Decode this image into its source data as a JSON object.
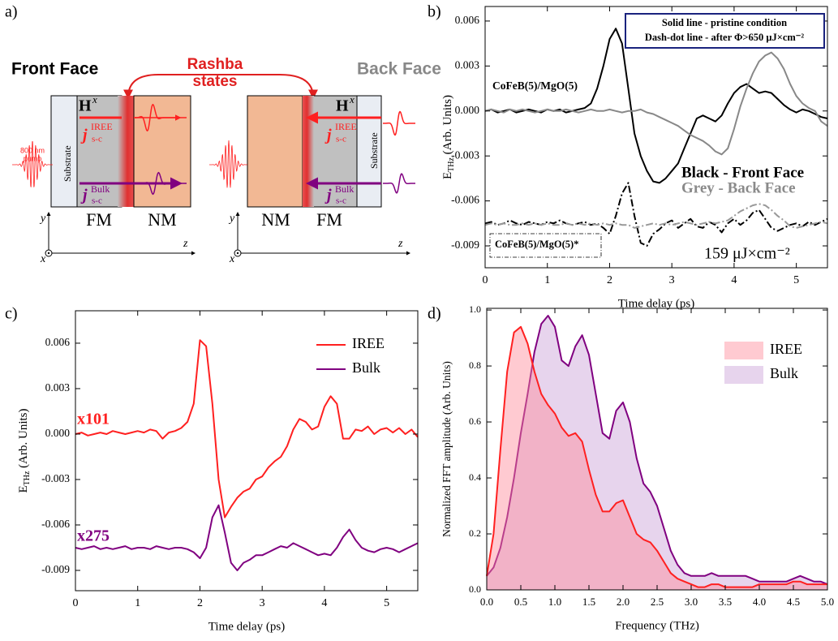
{
  "panel_labels": [
    "a)",
    "b)",
    "c)",
    "d)"
  ],
  "diagram": {
    "rashba": [
      "Rashba",
      "states"
    ],
    "front": {
      "title": "Front Face",
      "pump": [
        "800 nm",
        "pump"
      ],
      "field": "H",
      "field_sup": "x",
      "current": "j",
      "iree_sup": "IREE",
      "iree_sub": "s-c",
      "bulk_sup": "Bulk",
      "bulk_sub": "s-c",
      "substrate": "Substrate",
      "layers": [
        "FM",
        "NM"
      ],
      "axes": [
        "y",
        "x",
        "z"
      ]
    },
    "back": {
      "title": "Back Face",
      "field": "H",
      "field_sup": "x",
      "current": "j",
      "iree_sup": "IREE",
      "iree_sub": "s-c",
      "bulk_sup": "Bulk",
      "bulk_sub": "s-c",
      "substrate": "Substrate",
      "layers": [
        "NM",
        "FM"
      ],
      "axes": [
        "y",
        "x",
        "z"
      ]
    }
  },
  "chart_data": [
    {
      "type": "line",
      "x": [
        0,
        0.1,
        0.2,
        0.3,
        0.4,
        0.5,
        0.6,
        0.7,
        0.8,
        0.9,
        1,
        1.1,
        1.2,
        1.3,
        1.4,
        1.5,
        1.6,
        1.7,
        1.8,
        1.9,
        2,
        2.1,
        2.2,
        2.3,
        2.4,
        2.5,
        2.6,
        2.7,
        2.8,
        2.9,
        3,
        3.1,
        3.2,
        3.3,
        3.4,
        3.5,
        3.6,
        3.7,
        3.8,
        3.9,
        4,
        4.1,
        4.2,
        4.3,
        4.4,
        4.5,
        4.6,
        4.7,
        4.8,
        4.9,
        5,
        5.1,
        5.2,
        5.3,
        5.4,
        5.5
      ],
      "series": [
        {
          "color": "#000000",
          "line_style": "solid",
          "values": [
            0.0,
            0.0001,
            -0.0001,
            0.0,
            0.0001,
            -0.0001,
            0.0,
            0.0001,
            0.0,
            -0.0001,
            0.0001,
            0.0,
            0.0001,
            -0.0001,
            0.0,
            0.0001,
            0.0002,
            0.0005,
            0.0015,
            0.003,
            0.0048,
            0.0055,
            0.0045,
            0.0015,
            -0.0015,
            -0.003,
            -0.004,
            -0.0047,
            -0.0048,
            -0.0045,
            -0.004,
            -0.0035,
            -0.0025,
            -0.0015,
            -0.0005,
            -0.0003,
            -0.0005,
            -0.0007,
            -0.0003,
            0.0005,
            0.0012,
            0.0016,
            0.0018,
            0.0015,
            0.0012,
            0.0013,
            0.0012,
            0.0008,
            0.0004,
            0.0001,
            -0.0001,
            0.0001,
            0.0,
            -0.0002,
            -0.0004,
            -0.0005
          ]
        },
        {
          "color": "#888888",
          "line_style": "solid",
          "values": [
            0.0,
            0.0001,
            0.0,
            -0.0001,
            0.0001,
            0.0,
            0.0001,
            0.0,
            -0.0001,
            0.0,
            0.0001,
            0.0,
            0.0,
            0.0001,
            0.0,
            -0.0001,
            0.0,
            0.0001,
            0.0,
            0.0,
            0.0001,
            0.0,
            -0.0001,
            0.0,
            0.0,
            0.0001,
            -0.0001,
            -0.0002,
            -0.0004,
            -0.0006,
            -0.0008,
            -0.001,
            -0.0013,
            -0.0016,
            -0.0018,
            -0.002,
            -0.0023,
            -0.0027,
            -0.0029,
            -0.0025,
            -0.0012,
            0.0003,
            0.0015,
            0.0025,
            0.0033,
            0.0037,
            0.0039,
            0.0035,
            0.0028,
            0.0018,
            0.001,
            0.0005,
            0.0002,
            0.0,
            -0.0007,
            -0.001
          ]
        },
        {
          "color": "#000000",
          "line_style": "dash-dot",
          "values": [
            -0.0075,
            -0.0074,
            -0.0076,
            -0.0075,
            -0.0073,
            -0.0075,
            -0.0076,
            -0.0074,
            -0.0075,
            -0.0076,
            -0.0074,
            -0.0075,
            -0.0073,
            -0.0075,
            -0.0076,
            -0.0075,
            -0.0074,
            -0.0076,
            -0.0075,
            -0.0078,
            -0.0082,
            -0.007,
            -0.0055,
            -0.0048,
            -0.007,
            -0.0088,
            -0.009,
            -0.0082,
            -0.0079,
            -0.0075,
            -0.0073,
            -0.0078,
            -0.0075,
            -0.0072,
            -0.0077,
            -0.0078,
            -0.0074,
            -0.0076,
            -0.0081,
            -0.0075,
            -0.0072,
            -0.0076,
            -0.0073,
            -0.0068,
            -0.0066,
            -0.0072,
            -0.0078,
            -0.008,
            -0.0078,
            -0.0076,
            -0.0075,
            -0.0077,
            -0.0074,
            -0.0076,
            -0.0074,
            -0.0072
          ]
        },
        {
          "color": "#999999",
          "line_style": "dash-dot",
          "values": [
            -0.0076,
            -0.0075,
            -0.0076,
            -0.0075,
            -0.0076,
            -0.0076,
            -0.0075,
            -0.0076,
            -0.0075,
            -0.0076,
            -0.0075,
            -0.0076,
            -0.0076,
            -0.0075,
            -0.0076,
            -0.0075,
            -0.0076,
            -0.0075,
            -0.0076,
            -0.0075,
            -0.0076,
            -0.0075,
            -0.0076,
            -0.0076,
            -0.0078,
            -0.0077,
            -0.0076,
            -0.0075,
            -0.0076,
            -0.0075,
            -0.0076,
            -0.0075,
            -0.0074,
            -0.0075,
            -0.0076,
            -0.0075,
            -0.0074,
            -0.0075,
            -0.0074,
            -0.0073,
            -0.007,
            -0.0067,
            -0.0065,
            -0.0063,
            -0.0062,
            -0.0063,
            -0.0066,
            -0.007,
            -0.0073,
            -0.0077,
            -0.0078,
            -0.0077,
            -0.0076,
            -0.0075,
            -0.0074,
            -0.0075
          ]
        }
      ],
      "xlim": [
        0,
        5.5
      ],
      "ylim": [
        -0.01046,
        0.00697
      ],
      "xticks": [
        0,
        1,
        2,
        3,
        4,
        5
      ],
      "yticks": [
        0.006,
        0.003,
        {
          "value": 0,
          "label": "0.000"
        },
        -0.003,
        -0.006,
        -0.009
      ],
      "x_label": "Time delay (ps)",
      "y_label": {
        "main": "E",
        "sub": "THz",
        "rest": " (Arb. Units)"
      },
      "annotations": [
        "Solid line - pristine condition",
        "Dash-dot line - after Φ>650 μJ×cm⁻²",
        "CoFeB(5)/MgO(5)",
        "CoFeB(5)/MgO(5)*",
        "Black - Front Face",
        "Grey - Back Face",
        "159 μJ×cm⁻²"
      ]
    },
    {
      "type": "line",
      "x": [
        0,
        0.1,
        0.2,
        0.3,
        0.4,
        0.5,
        0.6,
        0.7,
        0.8,
        0.9,
        1,
        1.1,
        1.2,
        1.3,
        1.4,
        1.5,
        1.6,
        1.7,
        1.8,
        1.9,
        2,
        2.1,
        2.2,
        2.3,
        2.4,
        2.5,
        2.6,
        2.7,
        2.8,
        2.9,
        3,
        3.1,
        3.2,
        3.3,
        3.4,
        3.5,
        3.6,
        3.7,
        3.8,
        3.9,
        4,
        4.1,
        4.2,
        4.3,
        4.4,
        4.5,
        4.6,
        4.7,
        4.8,
        4.9,
        5,
        5.1,
        5.2,
        5.3,
        5.4,
        5.5
      ],
      "series": [
        {
          "name": "IREE",
          "color": "#ff2020",
          "line_style": "solid",
          "values": [
            0.0,
            0.0001,
            -0.0001,
            0.0,
            0.0001,
            0.0,
            0.0002,
            0.0001,
            0.0,
            0.0001,
            0.0002,
            0.0001,
            0.0003,
            0.0002,
            -0.0003,
            0.0001,
            0.0002,
            0.0004,
            0.0008,
            0.002,
            0.0062,
            0.0058,
            0.002,
            -0.003,
            -0.0055,
            -0.0048,
            -0.0042,
            -0.0038,
            -0.0036,
            -0.003,
            -0.0028,
            -0.0022,
            -0.0018,
            -0.0015,
            -0.0008,
            0.0003,
            0.001,
            0.0008,
            0.0003,
            0.0005,
            0.0018,
            0.0025,
            0.002,
            -0.0003,
            -0.0003,
            0.0003,
            0.0002,
            0.0005,
            0.0,
            0.0003,
            0.0004,
            0.0001,
            0.0004,
            0.0,
            0.0003,
            -0.0002
          ]
        },
        {
          "name": "Bulk",
          "color": "#800080",
          "line_style": "solid",
          "values": [
            -0.0075,
            -0.0076,
            -0.0075,
            -0.0074,
            -0.0076,
            -0.0075,
            -0.0076,
            -0.0075,
            -0.0074,
            -0.0076,
            -0.0075,
            -0.0075,
            -0.0076,
            -0.0074,
            -0.0075,
            -0.0076,
            -0.0075,
            -0.0075,
            -0.0076,
            -0.0078,
            -0.0082,
            -0.0075,
            -0.0055,
            -0.0047,
            -0.0065,
            -0.0085,
            -0.009,
            -0.0085,
            -0.0083,
            -0.008,
            -0.008,
            -0.0078,
            -0.0076,
            -0.0074,
            -0.0075,
            -0.0072,
            -0.0074,
            -0.0076,
            -0.0078,
            -0.008,
            -0.0079,
            -0.008,
            -0.0075,
            -0.0068,
            -0.0063,
            -0.007,
            -0.0075,
            -0.0077,
            -0.0078,
            -0.0076,
            -0.0075,
            -0.0076,
            -0.0078,
            -0.0076,
            -0.0074,
            -0.0072
          ]
        }
      ],
      "xlim": [
        0,
        5.5
      ],
      "ylim": [
        -0.01034,
        0.00814
      ],
      "xticks": [
        0,
        1,
        2,
        3,
        4,
        5
      ],
      "yticks": [
        0.006,
        0.003,
        {
          "value": 0,
          "label": "0.000"
        },
        -0.003,
        -0.006,
        -0.009
      ],
      "x_label": "Time delay (ps)",
      "y_label": {
        "main": "E",
        "sub": "THz",
        "rest": " (Arb. Units)"
      },
      "annotations": [
        "x101",
        "x275"
      ],
      "legend": "upper right"
    },
    {
      "type": "area",
      "x": [
        0,
        0.1,
        0.2,
        0.3,
        0.4,
        0.5,
        0.6,
        0.7,
        0.8,
        0.9,
        1,
        1.1,
        1.2,
        1.3,
        1.4,
        1.5,
        1.6,
        1.7,
        1.8,
        1.9,
        2,
        2.1,
        2.2,
        2.3,
        2.4,
        2.5,
        2.6,
        2.7,
        2.8,
        2.9,
        3,
        3.1,
        3.2,
        3.3,
        3.4,
        3.5,
        3.6,
        3.7,
        3.8,
        3.9,
        4,
        4.1,
        4.2,
        4.3,
        4.4,
        4.5,
        4.6,
        4.7,
        4.8,
        4.9,
        5
      ],
      "series": [
        {
          "name": "IREE",
          "color": "#ff2020",
          "fill": "#ff8a98",
          "values": [
            0.05,
            0.2,
            0.5,
            0.78,
            0.92,
            0.94,
            0.88,
            0.78,
            0.7,
            0.66,
            0.63,
            0.58,
            0.55,
            0.56,
            0.53,
            0.43,
            0.34,
            0.28,
            0.28,
            0.31,
            0.32,
            0.26,
            0.2,
            0.18,
            0.17,
            0.14,
            0.1,
            0.06,
            0.04,
            0.03,
            0.02,
            0.01,
            0.01,
            0.02,
            0.02,
            0.01,
            0.01,
            0.01,
            0.01,
            0.01,
            0.02,
            0.02,
            0.02,
            0.02,
            0.02,
            0.03,
            0.03,
            0.02,
            0.02,
            0.02,
            0.02
          ]
        },
        {
          "name": "Bulk",
          "color": "#800080",
          "fill": "#c9a0d8",
          "values": [
            0.05,
            0.08,
            0.15,
            0.26,
            0.4,
            0.56,
            0.7,
            0.85,
            0.95,
            0.98,
            0.94,
            0.82,
            0.8,
            0.87,
            0.91,
            0.84,
            0.7,
            0.56,
            0.54,
            0.64,
            0.67,
            0.6,
            0.47,
            0.38,
            0.35,
            0.3,
            0.22,
            0.14,
            0.09,
            0.06,
            0.05,
            0.05,
            0.05,
            0.06,
            0.05,
            0.05,
            0.05,
            0.05,
            0.05,
            0.04,
            0.03,
            0.03,
            0.03,
            0.03,
            0.03,
            0.04,
            0.05,
            0.04,
            0.03,
            0.03,
            0.02
          ]
        }
      ],
      "xlim": [
        0,
        5
      ],
      "ylim": [
        0,
        1.006
      ],
      "xticks": [
        {
          "value": 0,
          "label": "0.0"
        },
        0.5,
        {
          "value": 1,
          "label": "1.0"
        },
        1.5,
        {
          "value": 2,
          "label": "2.0"
        },
        2.5,
        {
          "value": 3,
          "label": "3.0"
        },
        3.5,
        {
          "value": 4,
          "label": "4.0"
        },
        4.5,
        {
          "value": 5,
          "label": "5.0"
        }
      ],
      "yticks": [
        {
          "value": 0,
          "label": "0.0"
        },
        0.2,
        0.4,
        0.6,
        0.8,
        {
          "value": 1,
          "label": "1.0"
        }
      ],
      "x_label": "Frequency (THz)",
      "y_label": "Normalized FFT amplitude (Arb. Units)",
      "legend": "upper right"
    }
  ]
}
